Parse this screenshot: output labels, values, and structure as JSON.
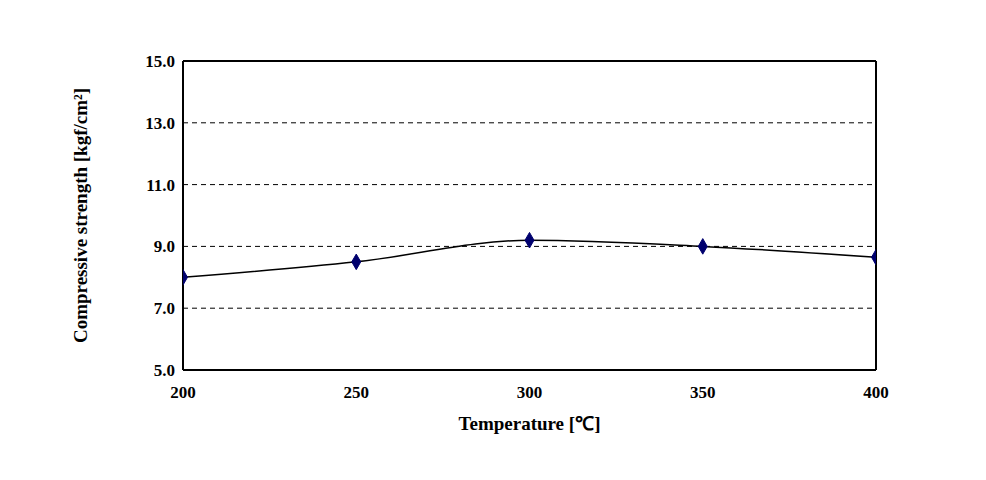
{
  "chart_data": {
    "type": "line",
    "x_label": "Temperature [℃]",
    "y_label": "Compressive strength [kgf/cm²]",
    "x": [
      200,
      250,
      300,
      350,
      400
    ],
    "series": [
      {
        "name": "Compressive strength",
        "color": "#000000",
        "marker": "diamond",
        "line_style": "solid",
        "values": [
          8.0,
          8.5,
          9.2,
          9.0,
          8.65
        ]
      }
    ],
    "xlim": [
      200,
      400
    ],
    "xticks": [
      200,
      250,
      300,
      350,
      400
    ],
    "ylim": [
      5,
      15
    ],
    "yticks": [
      {
        "value": 5,
        "label": "5.0"
      },
      {
        "value": 7,
        "label": "7.0"
      },
      {
        "value": 9,
        "label": "9.0"
      },
      {
        "value": 11,
        "label": "11.0"
      },
      {
        "value": 13,
        "label": "13.0"
      },
      {
        "value": 15,
        "label": "15.0"
      }
    ],
    "grid": true
  }
}
